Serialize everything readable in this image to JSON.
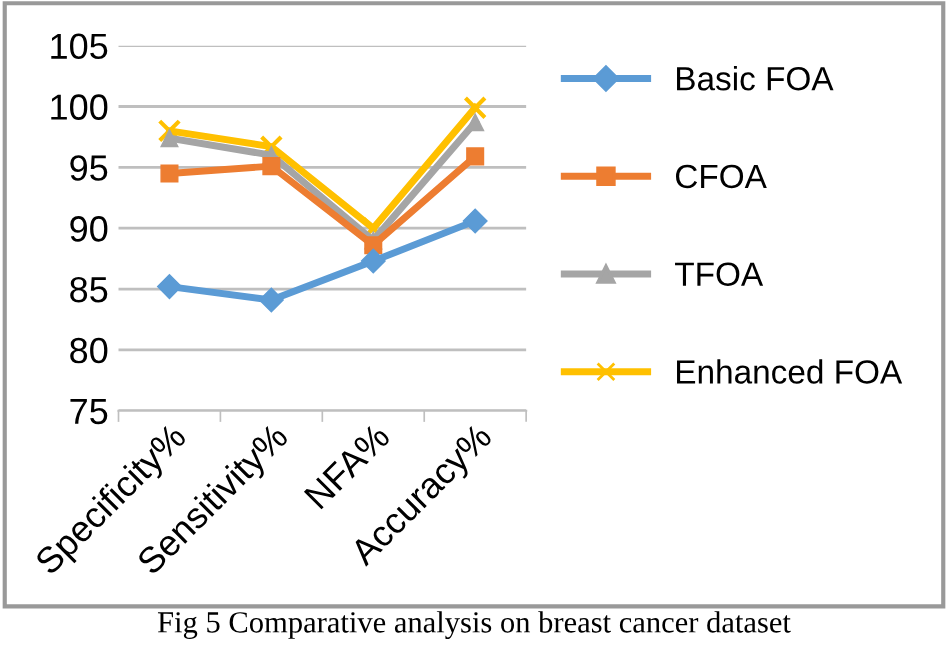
{
  "chart_data": {
    "type": "line",
    "categories": [
      "Specificity%",
      "Sensitivity%",
      "NFA%",
      "Accuracy%"
    ],
    "series": [
      {
        "name": "Basic FOA",
        "color": "#5b9bd5",
        "marker": "diamond",
        "values": [
          85.2,
          84.1,
          87.3,
          90.6
        ]
      },
      {
        "name": "CFOA",
        "color": "#ed7d31",
        "marker": "square",
        "values": [
          94.5,
          95.1,
          88.6,
          95.9
        ]
      },
      {
        "name": "TFOA",
        "color": "#a5a5a5",
        "marker": "triangle",
        "values": [
          97.4,
          96.0,
          89.0,
          98.7
        ]
      },
      {
        "name": "Enhanced FOA",
        "color": "#ffc000",
        "marker": "cross",
        "values": [
          98.0,
          96.7,
          90.0,
          99.9
        ]
      }
    ],
    "ylim": [
      75,
      105
    ],
    "yticks": [
      75,
      80,
      85,
      90,
      95,
      100,
      105
    ],
    "grid": "y",
    "legend": "right",
    "annotations": [
      "Fig 5 Comparative analysis on breast cancer dataset"
    ]
  }
}
